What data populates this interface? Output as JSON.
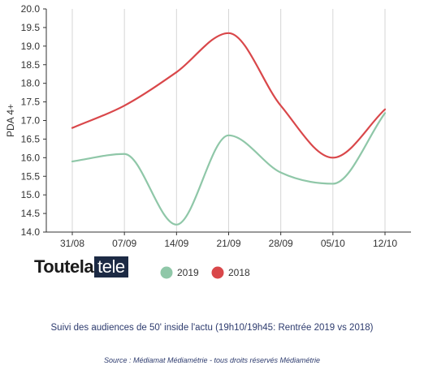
{
  "chart_data": {
    "type": "line",
    "categories": [
      "31/08",
      "07/09",
      "14/09",
      "21/09",
      "28/09",
      "05/10",
      "12/10"
    ],
    "series": [
      {
        "name": "2019",
        "color": "#8fc7a8",
        "values": [
          15.9,
          16.1,
          14.2,
          16.6,
          15.6,
          15.3,
          17.2
        ]
      },
      {
        "name": "2018",
        "color": "#d9474a",
        "values": [
          16.8,
          17.4,
          18.3,
          19.35,
          17.4,
          16.0,
          17.3
        ]
      }
    ],
    "ylabel": "PDA 4+",
    "ylim": [
      14.0,
      20.0
    ],
    "yticks": [
      "14.0",
      "14.5",
      "15.0",
      "15.5",
      "16.0",
      "16.5",
      "17.0",
      "17.5",
      "18.0",
      "18.5",
      "19.0",
      "19.5",
      "20.0"
    ],
    "grid": "vertical",
    "legend": "bottom-center"
  },
  "logo": {
    "part1": "Toutela",
    "part2": "tele"
  },
  "caption": "Suivi des audiences de 50' inside l'actu (19h10/19h45: Rentrée 2019 vs 2018)",
  "source": "Source : Médiamat Médiamétrie - tous droits réservés Médiamétrie"
}
